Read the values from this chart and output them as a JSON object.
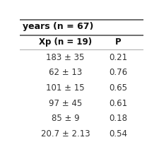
{
  "title_partial": "years (n = 67)",
  "col_headers": [
    "Xp (n = 19)",
    "P"
  ],
  "rows": [
    [
      "183 ± 35",
      "0.21"
    ],
    [
      "62 ± 13",
      "0.76"
    ],
    [
      "101 ± 15",
      "0.65"
    ],
    [
      "97 ± 45",
      "0.61"
    ],
    [
      "85 ± 9",
      "0.18"
    ],
    [
      "20.7 ± 2.13",
      "0.54"
    ]
  ],
  "background_color": "#ffffff",
  "text_color": "#333333",
  "header_fontsize": 8.5,
  "body_fontsize": 8.5,
  "title_fontsize": 9.0,
  "line_color": "#aaaaaa",
  "title_line_color": "#555555"
}
